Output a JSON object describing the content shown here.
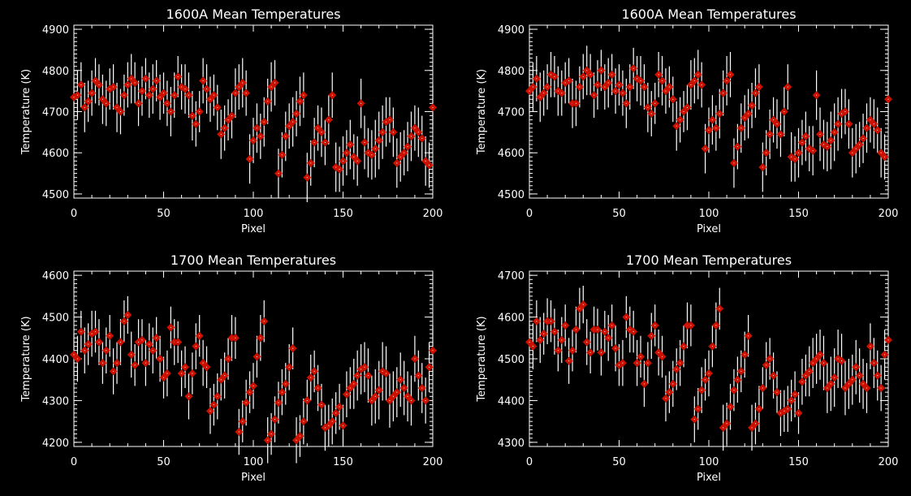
{
  "colors": {
    "background": "#000000",
    "axes": "#ffffff",
    "marker": "#cc1100",
    "errorbar": "#ffffff"
  },
  "chart_data": [
    {
      "type": "scatter",
      "panel": "top-left",
      "title": "1600A Mean Temperatures",
      "xlabel": "Pixel",
      "ylabel": "Temperature (K)",
      "xlim": [
        0,
        200
      ],
      "ylim": [
        4490,
        4910
      ],
      "xticks": [
        "0",
        "50",
        "100",
        "150",
        "200"
      ],
      "yticks": [
        "4500",
        "4600",
        "4700",
        "4800",
        "4900"
      ],
      "x_step": 2,
      "values": [
        4735,
        4740,
        4765,
        4710,
        4725,
        4745,
        4775,
        4765,
        4730,
        4720,
        4755,
        4760,
        4710,
        4700,
        4740,
        4765,
        4780,
        4770,
        4720,
        4750,
        4780,
        4740,
        4755,
        4775,
        4735,
        4745,
        4720,
        4700,
        4740,
        4785,
        4760,
        4755,
        4740,
        4690,
        4670,
        4700,
        4775,
        4755,
        4730,
        4740,
        4710,
        4645,
        4660,
        4680,
        4690,
        4745,
        4760,
        4770,
        4745,
        4585,
        4630,
        4660,
        4640,
        4675,
        4725,
        4760,
        4770,
        4550,
        4595,
        4640,
        4665,
        4675,
        4695,
        4725,
        4740,
        4540,
        4575,
        4625,
        4660,
        4650,
        4625,
        4680,
        4740,
        4565,
        4560,
        4580,
        4600,
        4620,
        4590,
        4580,
        4720,
        4625,
        4600,
        4595,
        4610,
        4630,
        4650,
        4675,
        4680,
        4650,
        4575,
        4590,
        4600,
        4615,
        4640,
        4660,
        4650,
        4635,
        4580,
        4570,
        4710
      ],
      "errors": [
        50,
        60,
        55,
        60,
        50,
        55,
        55,
        50,
        60,
        55,
        50,
        55,
        60,
        55,
        50,
        55,
        60,
        50,
        55,
        60,
        50,
        55,
        60,
        50,
        55,
        50,
        55,
        60,
        55,
        50,
        55,
        60,
        55,
        60,
        55,
        50,
        55,
        60,
        55,
        50,
        55,
        60,
        55,
        50,
        55,
        60,
        55,
        60,
        55,
        60,
        55,
        60,
        55,
        60,
        55,
        60,
        55,
        60,
        55,
        60,
        55,
        60,
        55,
        60,
        55,
        60,
        55,
        60,
        55,
        60,
        55,
        60,
        55,
        60,
        55,
        60,
        55,
        60,
        55,
        60,
        60,
        65,
        60,
        60,
        70,
        70,
        65,
        60,
        55,
        60,
        60,
        60,
        55,
        60,
        60,
        55,
        60,
        55,
        60,
        55,
        55
      ]
    },
    {
      "type": "scatter",
      "panel": "top-right",
      "title": "1600A Mean Temperatures",
      "xlabel": "Pixel",
      "ylabel": "Temperature (K)",
      "xlim": [
        0,
        200
      ],
      "ylim": [
        4490,
        4910
      ],
      "xticks": [
        "0",
        "50",
        "100",
        "150",
        "200"
      ],
      "yticks": [
        "4500",
        "4600",
        "4700",
        "4800",
        "4900"
      ],
      "x_step": 2,
      "values": [
        4750,
        4760,
        4780,
        4735,
        4745,
        4760,
        4790,
        4785,
        4750,
        4745,
        4770,
        4775,
        4720,
        4720,
        4760,
        4785,
        4800,
        4790,
        4740,
        4765,
        4800,
        4760,
        4770,
        4790,
        4750,
        4765,
        4745,
        4720,
        4760,
        4805,
        4780,
        4775,
        4760,
        4710,
        4695,
        4720,
        4790,
        4775,
        4750,
        4760,
        4730,
        4665,
        4680,
        4700,
        4710,
        4765,
        4775,
        4790,
        4765,
        4610,
        4655,
        4680,
        4660,
        4695,
        4745,
        4775,
        4790,
        4575,
        4615,
        4660,
        4685,
        4695,
        4715,
        4745,
        4760,
        4565,
        4600,
        4645,
        4680,
        4670,
        4645,
        4700,
        4760,
        4590,
        4585,
        4600,
        4625,
        4640,
        4610,
        4605,
        4740,
        4645,
        4620,
        4615,
        4630,
        4650,
        4670,
        4695,
        4700,
        4670,
        4600,
        4610,
        4620,
        4635,
        4660,
        4680,
        4670,
        4655,
        4600,
        4590,
        4730
      ],
      "errors": [
        55,
        60,
        55,
        60,
        55,
        55,
        55,
        50,
        60,
        55,
        50,
        55,
        60,
        55,
        50,
        55,
        60,
        50,
        55,
        60,
        50,
        55,
        60,
        50,
        55,
        50,
        55,
        60,
        55,
        50,
        55,
        60,
        55,
        60,
        55,
        50,
        55,
        60,
        55,
        50,
        55,
        60,
        55,
        50,
        55,
        60,
        55,
        60,
        55,
        60,
        55,
        60,
        55,
        60,
        55,
        60,
        55,
        60,
        55,
        60,
        55,
        60,
        55,
        60,
        55,
        60,
        55,
        60,
        55,
        60,
        55,
        60,
        55,
        60,
        55,
        60,
        55,
        60,
        55,
        60,
        60,
        65,
        60,
        60,
        70,
        70,
        65,
        60,
        55,
        60,
        60,
        60,
        55,
        60,
        60,
        55,
        60,
        55,
        60,
        55,
        55
      ]
    },
    {
      "type": "scatter",
      "panel": "bottom-left",
      "title": "1700 Mean Temperatures",
      "xlabel": "Pixel",
      "ylabel": "Temperature (K)",
      "xlim": [
        0,
        200
      ],
      "ylim": [
        4190,
        4610
      ],
      "xticks": [
        "0",
        "50",
        "100",
        "150",
        "200"
      ],
      "yticks": [
        "4200",
        "4300",
        "4400",
        "4500",
        "4600"
      ],
      "x_step": 2,
      "values": [
        4410,
        4400,
        4465,
        4420,
        4435,
        4460,
        4465,
        4440,
        4390,
        4420,
        4455,
        4370,
        4390,
        4440,
        4490,
        4505,
        4410,
        4385,
        4440,
        4445,
        4390,
        4435,
        4420,
        4450,
        4400,
        4355,
        4365,
        4475,
        4440,
        4440,
        4365,
        4380,
        4310,
        4365,
        4430,
        4455,
        4390,
        4380,
        4275,
        4290,
        4310,
        4350,
        4360,
        4400,
        4450,
        4450,
        4225,
        4250,
        4295,
        4320,
        4335,
        4405,
        4450,
        4490,
        4205,
        4220,
        4255,
        4295,
        4320,
        4340,
        4380,
        4425,
        4205,
        4215,
        4250,
        4300,
        4355,
        4370,
        4330,
        4290,
        4235,
        4240,
        4250,
        4270,
        4285,
        4240,
        4315,
        4330,
        4340,
        4360,
        4375,
        4380,
        4360,
        4300,
        4310,
        4325,
        4370,
        4365,
        4300,
        4310,
        4320,
        4350,
        4330,
        4310,
        4300,
        4400,
        4360,
        4330,
        4300,
        4380,
        4420
      ],
      "errors": [
        50,
        55,
        50,
        55,
        50,
        55,
        50,
        55,
        50,
        55,
        50,
        55,
        50,
        55,
        50,
        45,
        55,
        50,
        55,
        50,
        55,
        50,
        55,
        50,
        55,
        50,
        55,
        50,
        55,
        50,
        55,
        50,
        55,
        50,
        55,
        50,
        55,
        50,
        55,
        50,
        55,
        50,
        55,
        50,
        55,
        50,
        55,
        50,
        55,
        50,
        55,
        50,
        55,
        50,
        55,
        50,
        55,
        50,
        55,
        50,
        55,
        50,
        55,
        50,
        55,
        50,
        55,
        50,
        55,
        50,
        55,
        50,
        55,
        50,
        55,
        50,
        55,
        50,
        60,
        60,
        60,
        60,
        65,
        60,
        65,
        70,
        70,
        65,
        65,
        60,
        60,
        65,
        65,
        60,
        60,
        55,
        60,
        60,
        55,
        60,
        60
      ]
    },
    {
      "type": "scatter",
      "panel": "bottom-right",
      "title": "1700 Mean Temperatures",
      "xlabel": "Pixel",
      "ylabel": "Temperature (K)",
      "xlim": [
        0,
        200
      ],
      "ylim": [
        4290,
        4710
      ],
      "xticks": [
        "0",
        "50",
        "100",
        "150",
        "200"
      ],
      "yticks": [
        "4300",
        "4400",
        "4500",
        "4600",
        "4700"
      ],
      "x_step": 2,
      "values": [
        4540,
        4530,
        4590,
        4545,
        4560,
        4590,
        4590,
        4565,
        4520,
        4545,
        4580,
        4495,
        4520,
        4570,
        4620,
        4630,
        4540,
        4515,
        4570,
        4570,
        4515,
        4565,
        4550,
        4580,
        4525,
        4485,
        4490,
        4600,
        4570,
        4565,
        4490,
        4505,
        4440,
        4490,
        4555,
        4580,
        4515,
        4505,
        4405,
        4420,
        4440,
        4475,
        4490,
        4530,
        4580,
        4580,
        4355,
        4380,
        4425,
        4450,
        4465,
        4530,
        4580,
        4620,
        4335,
        4345,
        4385,
        4425,
        4450,
        4470,
        4510,
        4555,
        4335,
        4345,
        4380,
        4430,
        4485,
        4500,
        4460,
        4420,
        4370,
        4375,
        4380,
        4400,
        4415,
        4370,
        4445,
        4460,
        4470,
        4490,
        4500,
        4510,
        4490,
        4430,
        4440,
        4455,
        4500,
        4495,
        4430,
        4440,
        4450,
        4480,
        4460,
        4440,
        4430,
        4530,
        4490,
        4460,
        4430,
        4510,
        4545
      ],
      "errors": [
        50,
        55,
        50,
        55,
        50,
        55,
        50,
        55,
        50,
        55,
        50,
        55,
        50,
        55,
        50,
        45,
        55,
        50,
        55,
        50,
        55,
        50,
        55,
        50,
        55,
        50,
        55,
        50,
        55,
        50,
        55,
        50,
        55,
        50,
        55,
        50,
        55,
        50,
        55,
        50,
        55,
        50,
        55,
        50,
        55,
        50,
        55,
        50,
        55,
        50,
        55,
        50,
        55,
        50,
        55,
        50,
        55,
        50,
        55,
        50,
        55,
        50,
        55,
        50,
        55,
        50,
        55,
        50,
        55,
        50,
        55,
        50,
        55,
        50,
        55,
        50,
        55,
        50,
        60,
        60,
        60,
        60,
        65,
        60,
        65,
        70,
        70,
        65,
        65,
        60,
        60,
        65,
        65,
        60,
        60,
        55,
        60,
        60,
        55,
        60,
        60
      ]
    }
  ]
}
